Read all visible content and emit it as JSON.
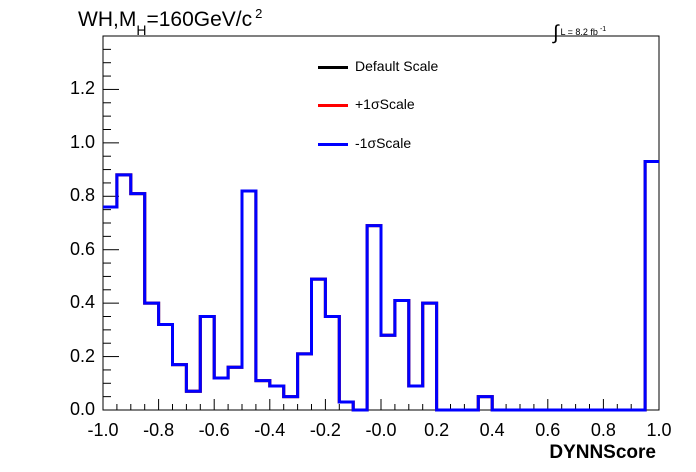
{
  "title": {
    "main": "WH,M",
    "subscript": "H",
    "rest": "=160GeV/c",
    "superscript": "2"
  },
  "luminosity": {
    "integral": "∫",
    "text": "L = 8.2 fb",
    "superscript": "-1"
  },
  "chart_data": {
    "type": "line",
    "style": "step-histogram",
    "xlabel": "DYNNScore",
    "ylabel": "",
    "xlim": [
      -1.0,
      1.0
    ],
    "ylim": [
      0.0,
      1.4
    ],
    "x_ticks": [
      "-1.0",
      "-0.8",
      "-0.6",
      "-0.4",
      "-0.2",
      "-0.0",
      "0.2",
      "0.4",
      "0.6",
      "0.8",
      "1.0"
    ],
    "y_ticks": [
      "0.0",
      "0.2",
      "0.4",
      "0.6",
      "0.8",
      "1.0",
      "1.2"
    ],
    "bin_edges": [
      -1.0,
      -0.95,
      -0.9,
      -0.85,
      -0.8,
      -0.75,
      -0.7,
      -0.65,
      -0.6,
      -0.55,
      -0.5,
      -0.45,
      -0.4,
      -0.35,
      -0.3,
      -0.25,
      -0.2,
      -0.15,
      -0.1,
      -0.05,
      0.0,
      0.05,
      0.1,
      0.15,
      0.2,
      0.25,
      0.3,
      0.35,
      0.4,
      0.45,
      0.5,
      0.55,
      0.6,
      0.65,
      0.7,
      0.75,
      0.8,
      0.85,
      0.9,
      0.95,
      1.0
    ],
    "series": [
      {
        "name": "Default Scale",
        "color": "#000000",
        "values": [
          0.76,
          0.88,
          0.81,
          0.4,
          0.32,
          0.17,
          0.07,
          0.35,
          0.12,
          0.16,
          0.82,
          0.11,
          0.09,
          0.05,
          0.21,
          0.49,
          0.35,
          0.03,
          0.0,
          0.69,
          0.28,
          0.41,
          0.09,
          0.4,
          0.0,
          0.0,
          0.0,
          0.05,
          0.0,
          0.0,
          0.0,
          0.0,
          0.0,
          0.0,
          0.0,
          0.0,
          0.0,
          0.0,
          0.0,
          0.93
        ]
      },
      {
        "name": "+1σScale",
        "color": "#ff0000",
        "values": [
          0.76,
          0.88,
          0.81,
          0.4,
          0.32,
          0.17,
          0.07,
          0.35,
          0.12,
          0.16,
          0.82,
          0.11,
          0.09,
          0.05,
          0.21,
          0.49,
          0.35,
          0.03,
          0.0,
          0.69,
          0.28,
          0.41,
          0.09,
          0.4,
          0.0,
          0.0,
          0.0,
          0.05,
          0.0,
          0.0,
          0.0,
          0.0,
          0.0,
          0.0,
          0.0,
          0.0,
          0.0,
          0.0,
          0.0,
          0.93
        ]
      },
      {
        "name": "-1σScale",
        "color": "#0000ff",
        "values": [
          0.76,
          0.88,
          0.81,
          0.4,
          0.32,
          0.17,
          0.07,
          0.35,
          0.12,
          0.16,
          0.82,
          0.11,
          0.09,
          0.05,
          0.21,
          0.49,
          0.35,
          0.03,
          0.0,
          0.69,
          0.28,
          0.41,
          0.09,
          0.4,
          0.0,
          0.0,
          0.0,
          0.05,
          0.0,
          0.0,
          0.0,
          0.0,
          0.0,
          0.0,
          0.0,
          0.0,
          0.0,
          0.0,
          0.0,
          0.93
        ]
      }
    ],
    "legend_position": "top-center",
    "grid": false
  }
}
